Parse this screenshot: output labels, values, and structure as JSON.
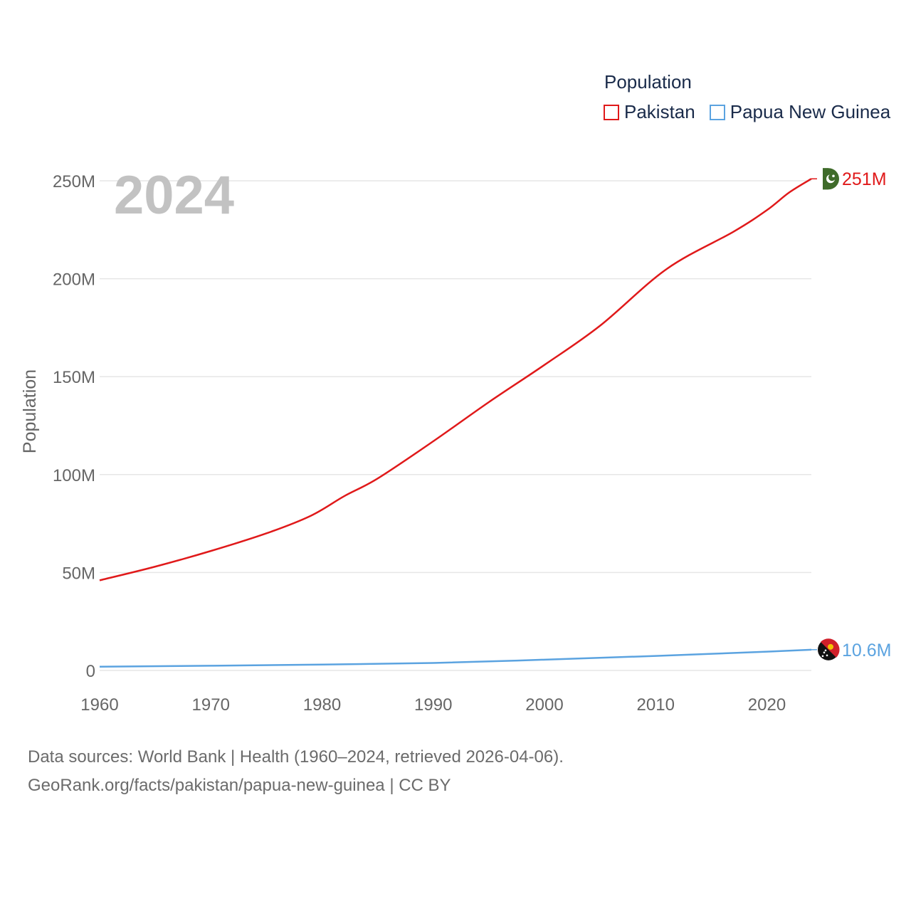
{
  "legend": {
    "title": "Population",
    "items": [
      {
        "name": "Pakistan",
        "color": "#e0191a"
      },
      {
        "name": "Papua New Guinea",
        "color": "#5ba3e0"
      }
    ]
  },
  "footer": {
    "line1": "Data sources: World Bank | Health (1960–2024, retrieved 2026-04-06).",
    "line2": "GeoRank.org/facts/pakistan/papua-new-guinea | CC BY"
  },
  "chart_data": {
    "type": "line",
    "title": "Population",
    "year_label": "2024",
    "xlabel": "",
    "ylabel": "Population",
    "xlim": [
      1960,
      2024
    ],
    "ylim": [
      0,
      250000000
    ],
    "x_ticks": [
      1960,
      1970,
      1980,
      1990,
      2000,
      2010,
      2020
    ],
    "x_tick_labels": [
      "1960",
      "1970",
      "1980",
      "1990",
      "2000",
      "2010",
      "2020"
    ],
    "y_ticks": [
      0,
      50000000,
      100000000,
      150000000,
      200000000,
      250000000
    ],
    "y_tick_labels": [
      "0",
      "50M",
      "100M",
      "150M",
      "200M",
      "250M"
    ],
    "grid": true,
    "series": [
      {
        "name": "Pakistan",
        "color": "#e0191a",
        "end_label": "251M",
        "x": [
          1960,
          1965,
          1970,
          1975,
          1979,
          1982,
          1985,
          1990,
          1995,
          2000,
          2005,
          2011,
          2017,
          2020,
          2022,
          2024
        ],
        "y": [
          46000000,
          53000000,
          61000000,
          70000000,
          79000000,
          89000000,
          98000000,
          117000000,
          137000000,
          156000000,
          176000000,
          205000000,
          224000000,
          235000000,
          244000000,
          251000000
        ]
      },
      {
        "name": "Papua New Guinea",
        "color": "#5ba3e0",
        "end_label": "10.6M",
        "x": [
          1960,
          1970,
          1980,
          1990,
          2000,
          2010,
          2020,
          2024
        ],
        "y": [
          1900000,
          2400000,
          3000000,
          3800000,
          5500000,
          7400000,
          9600000,
          10600000
        ]
      }
    ]
  }
}
